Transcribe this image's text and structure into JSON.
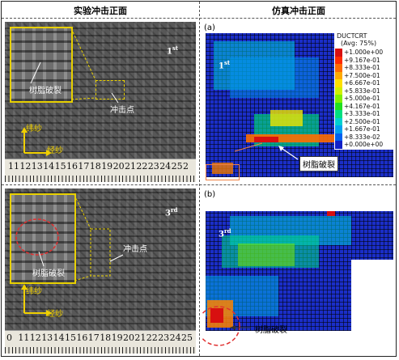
{
  "headers": {
    "left": "实验冲击正面",
    "right": "仿真冲击正面"
  },
  "panel_labels": {
    "a": "(a)",
    "b": "(b)"
  },
  "ordinals": {
    "top_photo": {
      "num": "1",
      "suffix": "st"
    },
    "top_sim": {
      "num": "1",
      "suffix": "st"
    },
    "bottom_photo": {
      "num": "3",
      "suffix": "rd"
    },
    "bottom_sim": {
      "num": "3",
      "suffix": "rd"
    }
  },
  "annotations": {
    "resin_crack": "树脂破裂",
    "impact_point": "冲击点",
    "weft": "纬纱",
    "warp": "经纱"
  },
  "ruler_top": [
    "11",
    "12",
    "13",
    "14",
    "15",
    "16",
    "17",
    "18",
    "19",
    "20",
    "21",
    "22",
    "23",
    "24",
    "25",
    "2"
  ],
  "ruler_bottom": [
    "0",
    "11",
    "12",
    "13",
    "14",
    "15",
    "16",
    "17",
    "18",
    "19",
    "20",
    "21",
    "22",
    "23",
    "24",
    "25"
  ],
  "legend": {
    "title": "DUCTCRT",
    "subtitle": "(Avg: 75%)",
    "entries": [
      {
        "label": "+1.000e+00",
        "color": "#d81010"
      },
      {
        "label": "+9.167e-01",
        "color": "#ff2a00"
      },
      {
        "label": "+8.333e-01",
        "color": "#ff6a00"
      },
      {
        "label": "+7.500e-01",
        "color": "#ffaa00"
      },
      {
        "label": "+6.667e-01",
        "color": "#ffe000"
      },
      {
        "label": "+5.833e-01",
        "color": "#d0f000"
      },
      {
        "label": "+5.000e-01",
        "color": "#80f000"
      },
      {
        "label": "+4.167e-01",
        "color": "#20e020"
      },
      {
        "label": "+3.333e-01",
        "color": "#00e080"
      },
      {
        "label": "+2.500e-01",
        "color": "#00d0d0"
      },
      {
        "label": "+1.667e-01",
        "color": "#00a0f0"
      },
      {
        "label": "+8.333e-02",
        "color": "#0060f0"
      },
      {
        "label": "+0.000e+00",
        "color": "#1020c8"
      }
    ]
  },
  "colors": {
    "yellow_outline": "#e8d000",
    "red_dash": "#e03030",
    "orange_box": "#f08040"
  }
}
